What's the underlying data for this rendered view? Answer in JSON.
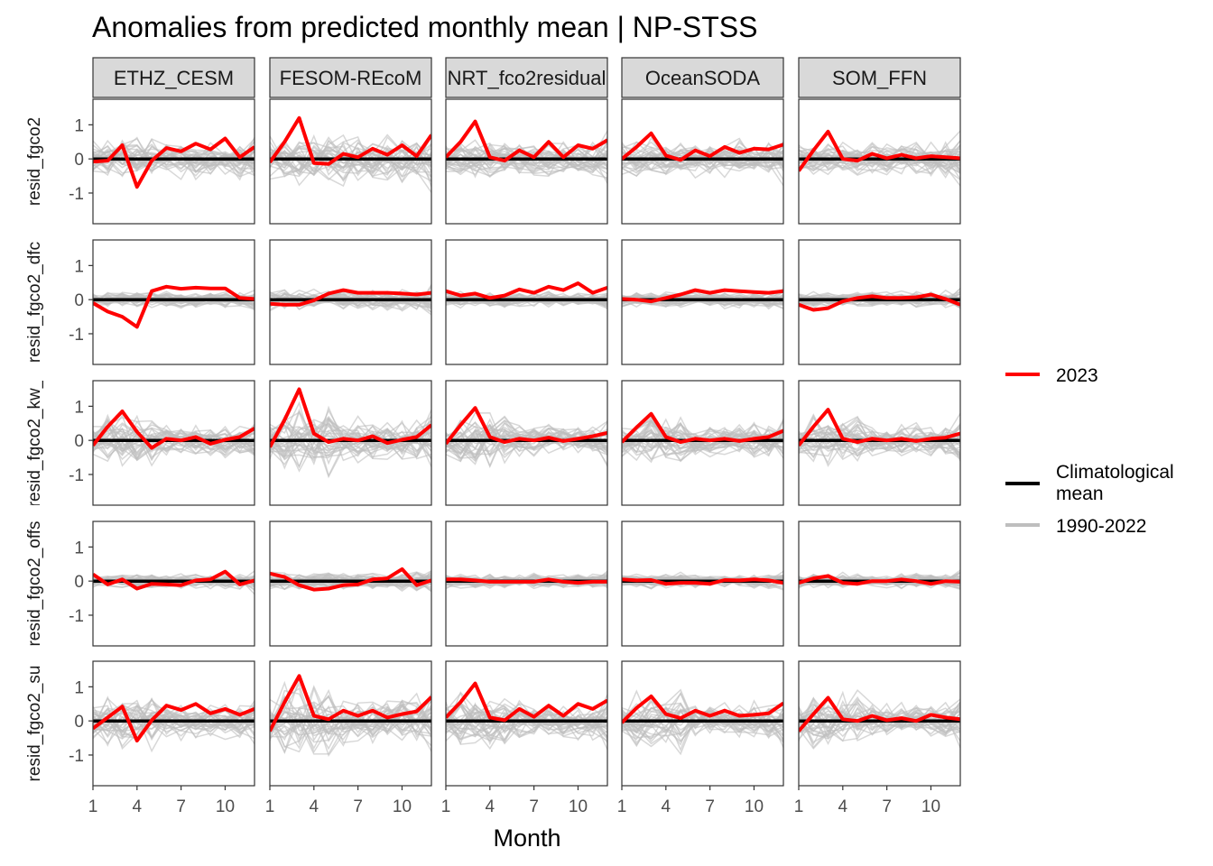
{
  "chart_data": {
    "type": "line",
    "title": "Anomalies from predicted monthly mean | NP-STSS",
    "xlabel": "Month",
    "ylabel": "",
    "x_ticks": [
      1,
      4,
      7,
      10
    ],
    "y_ticks": [
      -1,
      0,
      1
    ],
    "xlim": [
      1,
      12
    ],
    "ylim": [
      -1.9,
      1.75
    ],
    "facet_columns": [
      "ETHZ_CESM",
      "FESOM-REcoM",
      "NRT_fco2residual",
      "OceanSODA",
      "SOM_FFN"
    ],
    "facet_rows": [
      "resid_fgco2",
      "resid_fgco2_dfc",
      "resid_fgco2_kw_",
      "resid_fgco2_offs",
      "resid_fgco2_su"
    ],
    "legend": [
      {
        "name": "2023",
        "color": "#ff0000"
      },
      {
        "name": "Climatological mean",
        "color": "#000000"
      },
      {
        "name": "1990-2022",
        "color": "#bebebe"
      }
    ],
    "months": [
      1,
      2,
      3,
      4,
      5,
      6,
      7,
      8,
      9,
      10,
      11,
      12
    ],
    "climatological_mean": [
      0,
      0,
      0,
      0,
      0,
      0,
      0,
      0,
      0,
      0,
      0,
      0
    ],
    "series_2023": {
      "resid_fgco2": {
        "ETHZ_CESM": [
          -0.08,
          -0.05,
          0.4,
          -0.82,
          -0.05,
          0.32,
          0.22,
          0.45,
          0.28,
          0.6,
          0.05,
          0.35
        ],
        "FESOM-REcoM": [
          -0.1,
          0.5,
          1.2,
          -0.12,
          -0.15,
          0.15,
          0.05,
          0.3,
          0.12,
          0.4,
          0.08,
          0.7
        ],
        "NRT_fco2residual": [
          0.05,
          0.5,
          1.1,
          0.05,
          -0.05,
          0.25,
          0.05,
          0.5,
          0.05,
          0.4,
          0.3,
          0.55
        ],
        "OceanSODA": [
          0.0,
          0.35,
          0.75,
          0.1,
          -0.03,
          0.25,
          0.08,
          0.35,
          0.18,
          0.3,
          0.28,
          0.42
        ],
        "SOM_FFN": [
          -0.35,
          0.25,
          0.8,
          0.0,
          -0.05,
          0.15,
          0.02,
          0.12,
          0.02,
          0.08,
          0.05,
          0.02
        ]
      },
      "resid_fgco2_dfc": {
        "ETHZ_CESM": [
          -0.1,
          -0.35,
          -0.5,
          -0.8,
          0.25,
          0.38,
          0.32,
          0.35,
          0.33,
          0.33,
          0.05,
          0.02
        ],
        "FESOM-REcoM": [
          -0.12,
          -0.15,
          -0.15,
          -0.02,
          0.18,
          0.28,
          0.2,
          0.2,
          0.2,
          0.18,
          0.15,
          0.2
        ],
        "NRT_fco2residual": [
          0.25,
          0.12,
          0.18,
          0.05,
          0.12,
          0.3,
          0.2,
          0.38,
          0.28,
          0.48,
          0.2,
          0.35
        ],
        "OceanSODA": [
          0.02,
          0.0,
          -0.05,
          0.05,
          0.15,
          0.28,
          0.2,
          0.28,
          0.25,
          0.22,
          0.2,
          0.25
        ],
        "SOM_FFN": [
          -0.15,
          -0.3,
          -0.25,
          -0.05,
          0.05,
          0.1,
          0.05,
          0.05,
          0.07,
          0.15,
          0.02,
          -0.15
        ]
      },
      "resid_fgco2_kw_": {
        "ETHZ_CESM": [
          -0.15,
          0.4,
          0.85,
          0.25,
          -0.22,
          0.05,
          0.0,
          0.1,
          -0.1,
          0.02,
          0.1,
          0.35
        ],
        "FESOM-REcoM": [
          -0.2,
          0.6,
          1.5,
          0.2,
          -0.05,
          0.05,
          0.0,
          0.12,
          -0.08,
          0.02,
          0.1,
          0.45
        ],
        "NRT_fco2residual": [
          -0.1,
          0.45,
          0.95,
          0.1,
          -0.05,
          0.05,
          0.0,
          0.08,
          -0.02,
          0.05,
          0.12,
          0.22
        ],
        "OceanSODA": [
          -0.05,
          0.38,
          0.78,
          0.1,
          -0.05,
          0.05,
          0.0,
          0.05,
          -0.02,
          0.05,
          0.1,
          0.28
        ],
        "SOM_FFN": [
          -0.15,
          0.4,
          0.9,
          0.05,
          -0.05,
          0.05,
          0.0,
          0.05,
          -0.02,
          0.05,
          0.08,
          0.2
        ]
      },
      "resid_fgco2_offs": {
        "ETHZ_CESM": [
          0.2,
          -0.1,
          0.05,
          -0.22,
          -0.08,
          -0.1,
          -0.12,
          0.02,
          0.05,
          0.28,
          -0.1,
          0.02
        ],
        "FESOM-REcoM": [
          0.22,
          0.12,
          -0.12,
          -0.25,
          -0.22,
          -0.12,
          -0.1,
          0.05,
          0.08,
          0.35,
          -0.12,
          0.02
        ],
        "NRT_fco2residual": [
          0.05,
          0.05,
          0.02,
          -0.02,
          -0.02,
          -0.02,
          -0.02,
          0.05,
          -0.02,
          -0.05,
          -0.02,
          -0.02
        ],
        "OceanSODA": [
          0.05,
          0.02,
          0.03,
          -0.08,
          -0.05,
          -0.05,
          -0.08,
          0.03,
          0.02,
          0.05,
          0.02,
          -0.05
        ],
        "SOM_FFN": [
          -0.05,
          0.08,
          0.15,
          -0.05,
          -0.08,
          0.0,
          0.0,
          0.05,
          0.0,
          -0.08,
          0.0,
          -0.02
        ]
      },
      "resid_fgco2_su": {
        "ETHZ_CESM": [
          -0.22,
          0.1,
          0.42,
          -0.58,
          0.02,
          0.45,
          0.32,
          0.5,
          0.22,
          0.35,
          0.18,
          0.35
        ],
        "FESOM-REcoM": [
          -0.3,
          0.55,
          1.32,
          0.15,
          0.05,
          0.3,
          0.15,
          0.3,
          0.1,
          0.2,
          0.28,
          0.7
        ],
        "NRT_fco2residual": [
          0.1,
          0.55,
          1.1,
          0.1,
          0.02,
          0.35,
          0.12,
          0.45,
          0.15,
          0.5,
          0.35,
          0.6
        ],
        "OceanSODA": [
          -0.05,
          0.38,
          0.72,
          0.2,
          0.08,
          0.3,
          0.15,
          0.3,
          0.15,
          0.18,
          0.22,
          0.52
        ],
        "SOM_FFN": [
          -0.3,
          0.2,
          0.68,
          0.05,
          0.0,
          0.15,
          0.02,
          0.08,
          0.0,
          0.18,
          0.1,
          0.05
        ]
      }
    }
  }
}
